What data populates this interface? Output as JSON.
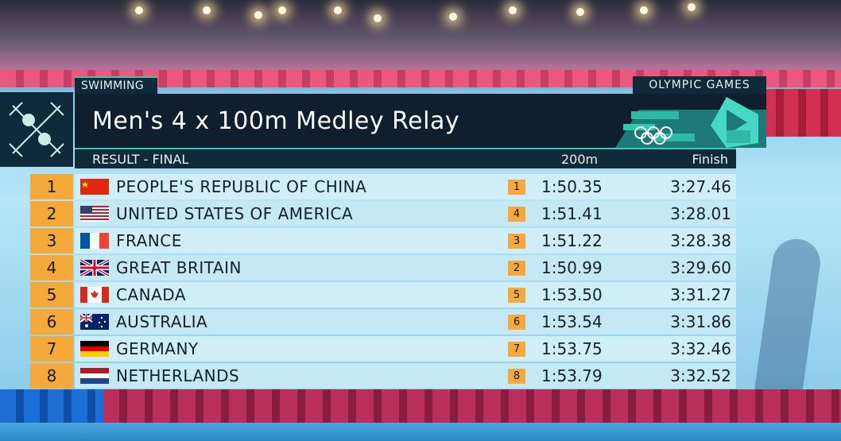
{
  "sport": "SWIMMING",
  "brand": "OLYMPIC  GAMES",
  "title": "Men's 4 x 100m Medley Relay",
  "subtitle": "RESULT - FINAL",
  "columns": {
    "split": "200m",
    "finish": "Finish"
  },
  "colors": {
    "rank_badge": "#f4a93a",
    "panel_dark": "#0f1f30",
    "row_light": "#cfeef7",
    "accent": "#3fc7b0"
  },
  "icons": {
    "pictogram": "swimming-pictogram-icon",
    "rings": "olympic-rings-icon"
  },
  "results": [
    {
      "rank": "1",
      "flag": "flag-china-icon",
      "country": "PEOPLE'S REPUBLIC OF CHINA",
      "split_rank": "1",
      "split": "1:50.35",
      "finish": "3:27.46"
    },
    {
      "rank": "2",
      "flag": "flag-usa-icon",
      "country": "UNITED STATES OF AMERICA",
      "split_rank": "4",
      "split": "1:51.41",
      "finish": "3:28.01"
    },
    {
      "rank": "3",
      "flag": "flag-france-icon",
      "country": "FRANCE",
      "split_rank": "3",
      "split": "1:51.22",
      "finish": "3:28.38"
    },
    {
      "rank": "4",
      "flag": "flag-great-britain-icon",
      "country": "GREAT BRITAIN",
      "split_rank": "2",
      "split": "1:50.99",
      "finish": "3:29.60"
    },
    {
      "rank": "5",
      "flag": "flag-canada-icon",
      "country": "CANADA",
      "split_rank": "5",
      "split": "1:53.50",
      "finish": "3:31.27"
    },
    {
      "rank": "6",
      "flag": "flag-australia-icon",
      "country": "AUSTRALIA",
      "split_rank": "6",
      "split": "1:53.54",
      "finish": "3:31.86"
    },
    {
      "rank": "7",
      "flag": "flag-germany-icon",
      "country": "GERMANY",
      "split_rank": "7",
      "split": "1:53.75",
      "finish": "3:32.46"
    },
    {
      "rank": "8",
      "flag": "flag-netherlands-icon",
      "country": "NETHERLANDS",
      "split_rank": "8",
      "split": "1:53.79",
      "finish": "3:32.52"
    }
  ]
}
